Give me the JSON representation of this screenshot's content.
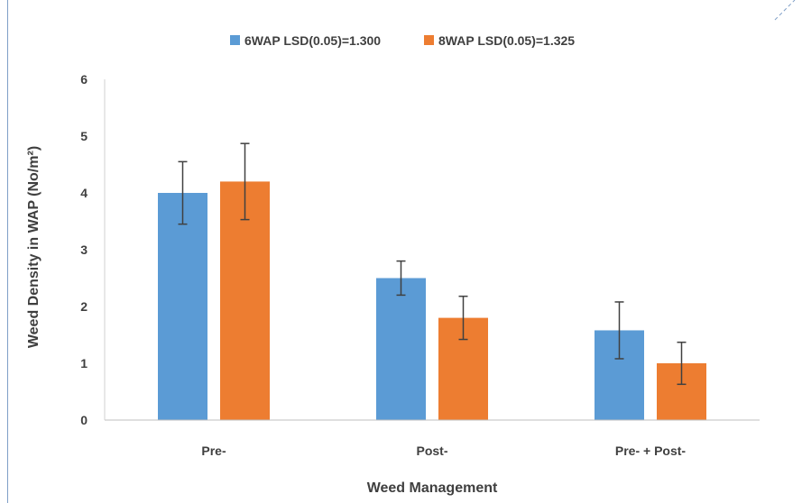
{
  "chart_data": {
    "type": "bar",
    "categories": [
      "Pre-",
      "Post-",
      "Pre- + Post-"
    ],
    "series": [
      {
        "name": "6WAP LSD(0.05)=1.300",
        "color": "#5b9bd5",
        "values": [
          4.0,
          2.5,
          1.58
        ],
        "error": [
          0.55,
          0.3,
          0.5
        ]
      },
      {
        "name": "8WAP LSD(0.05)=1.325",
        "color": "#ed7d31",
        "values": [
          4.2,
          1.8,
          1.0
        ],
        "error": [
          0.67,
          0.38,
          0.37
        ]
      }
    ],
    "xlabel": "Weed Management",
    "ylabel": "Weed Density  in WAP (No/m²)",
    "ylim": [
      0,
      6
    ],
    "yticks": [
      "0",
      "1",
      "2",
      "3",
      "4",
      "5",
      "6"
    ],
    "grid": false,
    "legend_position": "top"
  }
}
